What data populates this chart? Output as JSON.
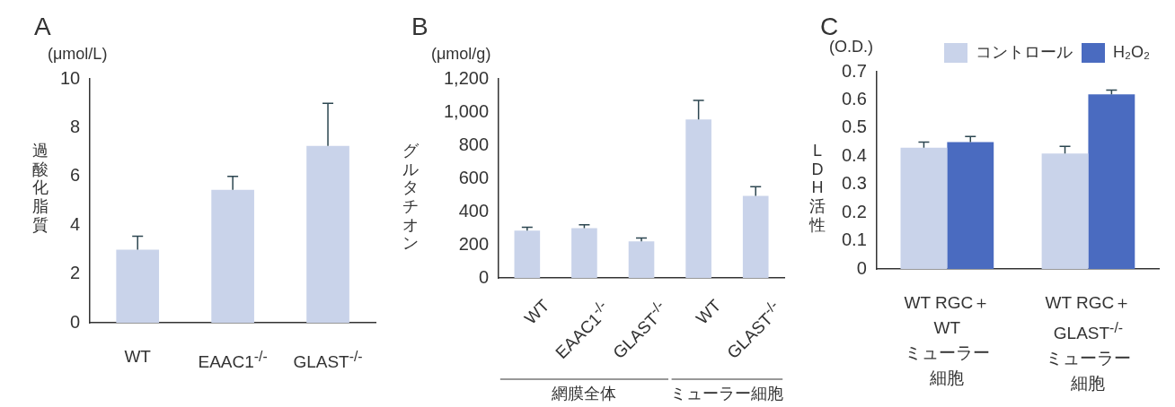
{
  "chart_data": [
    {
      "type": "bar",
      "title": "A",
      "ylabel": "過酸化脂質",
      "annotations": [
        "(μmol/L)"
      ],
      "categories": [
        "WT",
        "EAAC1$^{-/-}$",
        "GLAST$^{-/-}$"
      ],
      "values": [
        3.0,
        5.45,
        7.25
      ],
      "errors": [
        [
          3.0,
          3.55
        ],
        [
          5.45,
          6.0
        ],
        [
          7.25,
          9.0
        ]
      ],
      "color": "#c9d3ea",
      "ylim": [
        0,
        10
      ],
      "yticks": [
        0,
        2,
        4,
        6,
        8,
        10
      ]
    },
    {
      "type": "bar",
      "title": "B",
      "ylabel": "グルタチオン",
      "annotations": [
        "(μmol/g)",
        "網膜全体",
        "ミューラー細胞"
      ],
      "categories": [
        "WT",
        "EAAC1$^{-/-}$",
        "GLAST$^{-/-}$",
        "WT",
        "GLAST$^{-/-}$"
      ],
      "values": [
        285,
        300,
        220,
        955,
        495
      ],
      "errors": [
        [
          285,
          305
        ],
        [
          300,
          320
        ],
        [
          220,
          240
        ],
        [
          955,
          1070
        ],
        [
          495,
          550
        ]
      ],
      "color": "#c9d3ea",
      "ylim": [
        0,
        1200
      ],
      "yticks": [
        0,
        200,
        400,
        600,
        800,
        {
          "value": 1000,
          "label": "1,000"
        },
        {
          "value": 1200,
          "label": "1,200"
        }
      ]
    },
    {
      "type": "bar",
      "title": "C",
      "ylabel": "LDH活性",
      "annotations": [
        "(O.D.)"
      ],
      "categories": [
        "WT RGC＋\nWT\nミューラー細胞",
        "WT RGC＋\nGLAST$^{-/-}$\nミューラー細胞"
      ],
      "legend": "top right",
      "series": [
        {
          "name": "コントロール",
          "color": "#c9d3ea",
          "values": [
            0.43,
            0.41
          ],
          "errors": [
            [
              0.43,
              0.45
            ],
            [
              0.41,
              0.435
            ]
          ]
        },
        {
          "name": "H₂O₂",
          "color": "#4a6bc0",
          "values": [
            0.45,
            0.62
          ],
          "errors": [
            [
              0.45,
              0.47
            ],
            [
              0.62,
              0.635
            ]
          ]
        }
      ],
      "ylim": [
        0,
        0.7
      ],
      "yticks": [
        0,
        0.1,
        0.2,
        0.3,
        0.4,
        0.5,
        0.6,
        0.7
      ]
    }
  ]
}
